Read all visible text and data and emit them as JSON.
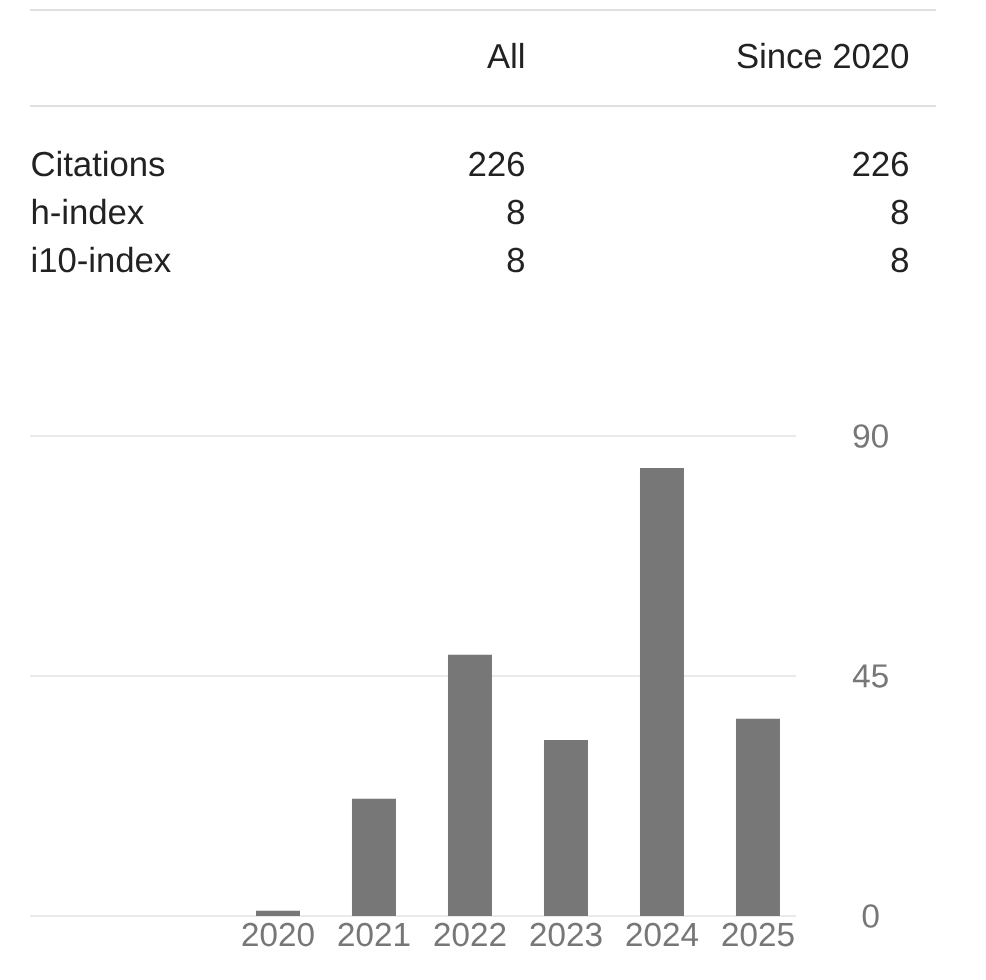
{
  "chart_data": [
    {
      "type": "other",
      "categories": [
        "Citations",
        "h-index",
        "i10-index"
      ],
      "data_labels": true,
      "series": [
        {
          "name": "All",
          "values": [
            226,
            8,
            8
          ]
        },
        {
          "name": "Since 2020",
          "values": [
            226,
            8,
            8
          ]
        }
      ]
    },
    {
      "type": "bar",
      "categories": [
        "2020",
        "2021",
        "2022",
        "2023",
        "2024",
        "2025"
      ],
      "values": [
        1,
        22,
        49,
        33,
        84,
        37
      ],
      "color": "#777777",
      "ylim": [
        0,
        90
      ],
      "yticks": [
        0,
        45,
        90
      ],
      "grid": "y"
    }
  ]
}
